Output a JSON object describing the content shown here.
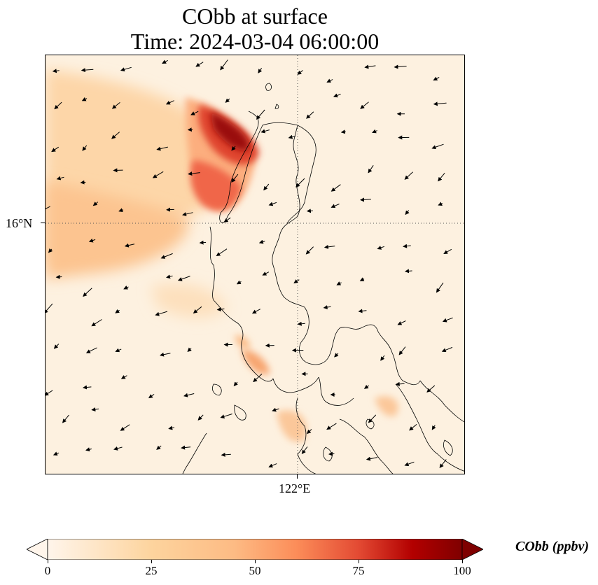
{
  "title": {
    "line1": "CObb at surface",
    "line2": "Time: 2024-03-04 06:00:00"
  },
  "axes": {
    "lat_tick_label": "16°N",
    "lon_tick_label": "122°E"
  },
  "colorbar": {
    "label": "CObb (ppbv)",
    "min": 0,
    "max": 100,
    "ticks": [
      {
        "value": 0,
        "label": "0"
      },
      {
        "value": 25,
        "label": "25"
      },
      {
        "value": 50,
        "label": "50"
      },
      {
        "value": 75,
        "label": "75"
      },
      {
        "value": 100,
        "label": "100"
      }
    ],
    "colors": [
      "#fff5eb",
      "#fdd49e",
      "#fdbb84",
      "#fc8d59",
      "#e34a33",
      "#b30000",
      "#7f0000"
    ],
    "extend": "both"
  },
  "colors": {
    "background": "#fdf1e0",
    "coastline": "#000000",
    "gridline": "#555555"
  },
  "legend": {
    "colorbar_position": "bottom",
    "gridlines": "dotted"
  }
}
